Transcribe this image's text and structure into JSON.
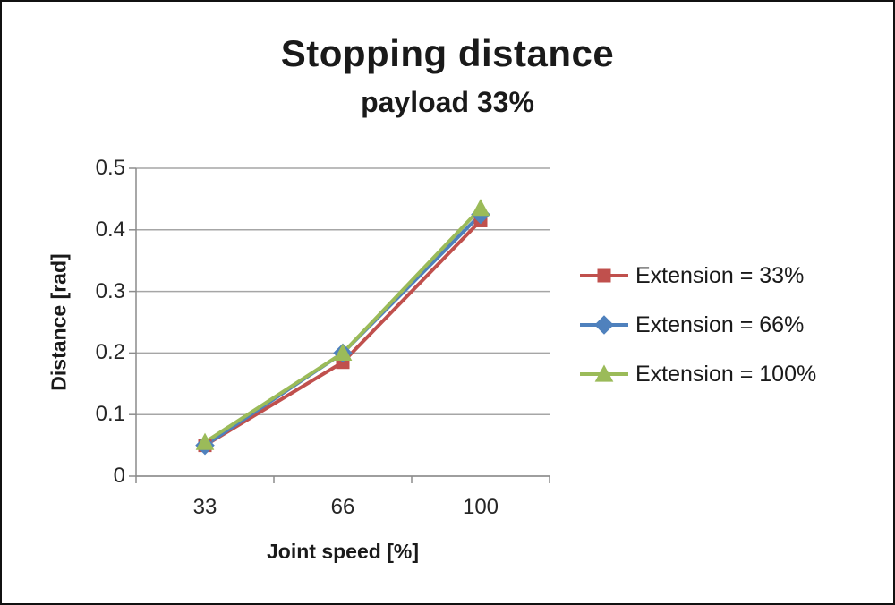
{
  "chart_data": {
    "type": "line",
    "title": "Stopping distance",
    "subtitle": "payload 33%",
    "xlabel": "Joint speed [%]",
    "ylabel": "Distance [rad]",
    "categories": [
      "33",
      "66",
      "100"
    ],
    "series": [
      {
        "name": "Extension = 33%",
        "values": [
          0.05,
          0.185,
          0.415
        ],
        "color": "#C0504D",
        "marker": "square"
      },
      {
        "name": "Extension = 66%",
        "values": [
          0.05,
          0.2,
          0.425
        ],
        "color": "#4F81BD",
        "marker": "diamond"
      },
      {
        "name": "Extension = 100%",
        "values": [
          0.055,
          0.2,
          0.435
        ],
        "color": "#9BBB59",
        "marker": "triangle"
      }
    ],
    "ylim": [
      0,
      0.5
    ],
    "ytick_step": 0.1,
    "yticks": [
      "0.5",
      "0.4",
      "0.3",
      "0.2",
      "0.1",
      "0"
    ],
    "grid": true,
    "legend_position": "right",
    "grid_color": "#A6A6A6",
    "axis_color": "#8C8C8C"
  }
}
